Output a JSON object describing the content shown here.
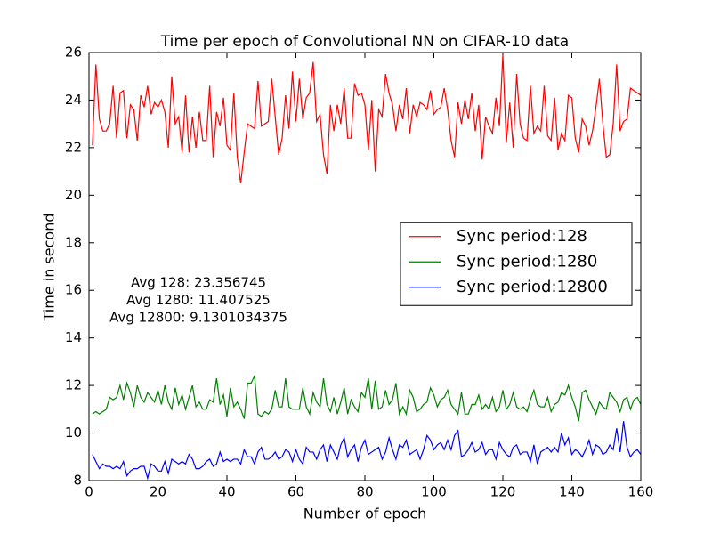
{
  "chart_data": {
    "type": "line",
    "title": "Time per epoch of Convolutional NN on CIFAR-10 data",
    "xlabel": "Number of epoch",
    "ylabel": "Time in second",
    "annotations": [
      "Avg 128: 23.356745",
      "Avg 1280: 11.407525",
      "Avg 12800: 9.1301034375"
    ],
    "legend": "center right",
    "xlim": [
      0,
      160
    ],
    "xticks": [
      0,
      20,
      40,
      60,
      80,
      100,
      120,
      140,
      160
    ],
    "ylim": [
      8,
      26
    ],
    "yticks": [
      8,
      10,
      12,
      14,
      16,
      18,
      20,
      22,
      24,
      26
    ],
    "x": [
      1,
      2,
      3,
      4,
      5,
      6,
      7,
      8,
      9,
      10,
      11,
      12,
      13,
      14,
      15,
      16,
      17,
      18,
      19,
      20,
      21,
      22,
      23,
      24,
      25,
      26,
      27,
      28,
      29,
      30,
      31,
      32,
      33,
      34,
      35,
      36,
      37,
      38,
      39,
      40,
      41,
      42,
      43,
      44,
      45,
      46,
      47,
      48,
      49,
      50,
      51,
      52,
      53,
      54,
      55,
      56,
      57,
      58,
      59,
      60,
      61,
      62,
      63,
      64,
      65,
      66,
      67,
      68,
      69,
      70,
      71,
      72,
      73,
      74,
      75,
      76,
      77,
      78,
      79,
      80,
      81,
      82,
      83,
      84,
      85,
      86,
      87,
      88,
      89,
      90,
      91,
      92,
      93,
      94,
      95,
      96,
      97,
      98,
      99,
      100,
      101,
      102,
      103,
      104,
      105,
      106,
      107,
      108,
      109,
      110,
      111,
      112,
      113,
      114,
      115,
      116,
      117,
      118,
      119,
      120,
      121,
      122,
      123,
      124,
      125,
      126,
      127,
      128,
      129,
      130,
      131,
      132,
      133,
      134,
      135,
      136,
      137,
      138,
      139,
      140,
      141,
      142,
      143,
      144,
      145,
      146,
      147,
      148,
      149,
      150,
      151,
      152,
      153,
      154,
      155,
      156,
      157,
      158,
      159,
      160
    ],
    "series": [
      {
        "name": "Sync period:128",
        "color": "#ff0000",
        "values": [
          22.1,
          25.5,
          23.2,
          22.7,
          22.7,
          23.0,
          24.6,
          22.4,
          24.3,
          24.4,
          22.4,
          23.8,
          23.6,
          22.3,
          24.2,
          23.7,
          24.6,
          23.4,
          23.9,
          23.7,
          24.0,
          23.5,
          22.0,
          25.0,
          23.0,
          23.3,
          21.8,
          24.2,
          21.8,
          23.3,
          22.0,
          23.5,
          22.3,
          22.3,
          24.6,
          21.6,
          23.5,
          22.9,
          24.1,
          22.1,
          21.9,
          24.3,
          21.6,
          20.5,
          21.8,
          23.0,
          22.9,
          22.8,
          24.8,
          22.9,
          23.0,
          23.1,
          24.9,
          23.3,
          21.7,
          22.4,
          24.2,
          22.8,
          25.2,
          23.1,
          24.9,
          23.2,
          24.1,
          24.3,
          25.6,
          23.1,
          23.4,
          21.7,
          20.9,
          23.8,
          22.7,
          23.8,
          23.0,
          24.5,
          22.4,
          22.4,
          24.7,
          24.2,
          24.3,
          23.8,
          21.9,
          24.0,
          21.0,
          23.6,
          23.3,
          25.1,
          24.3,
          23.8,
          22.7,
          23.8,
          23.2,
          24.5,
          22.6,
          23.8,
          23.3,
          23.9,
          23.8,
          23.6,
          24.4,
          23.4,
          23.6,
          23.7,
          24.5,
          23.6,
          22.3,
          21.6,
          23.9,
          23.0,
          24.0,
          23.2,
          24.3,
          22.7,
          23.8,
          21.5,
          23.3,
          22.9,
          22.6,
          24.1,
          22.9,
          25.9,
          22.2,
          23.9,
          22.0,
          25.1,
          23.0,
          22.4,
          22.3,
          24.6,
          22.6,
          22.9,
          22.7,
          24.6,
          22.5,
          22.3,
          24.1,
          21.9,
          22.6,
          22.3,
          24.2,
          24.1,
          22.4,
          21.8,
          23.2,
          22.9,
          22.1,
          22.7,
          23.7,
          24.9,
          23.0,
          21.6,
          21.7,
          23.0,
          25.5,
          22.7,
          23.1,
          23.2,
          24.5,
          24.4,
          24.3,
          24.2
        ]
      },
      {
        "name": "Sync period:1280",
        "color": "#008000",
        "values": [
          10.8,
          10.9,
          10.8,
          10.9,
          11.0,
          11.5,
          11.4,
          11.5,
          12.0,
          11.4,
          12.1,
          11.7,
          11.1,
          12.0,
          11.5,
          11.3,
          11.7,
          11.5,
          11.3,
          11.8,
          11.2,
          12.0,
          11.3,
          11.0,
          11.9,
          11.2,
          11.6,
          11.0,
          11.5,
          12.0,
          11.1,
          11.3,
          11.0,
          11.0,
          11.4,
          11.3,
          12.3,
          11.2,
          11.6,
          10.7,
          11.9,
          11.1,
          11.3,
          11.0,
          10.6,
          12.1,
          12.1,
          12.4,
          10.8,
          10.7,
          10.9,
          10.8,
          11.0,
          11.8,
          11.1,
          11.1,
          12.3,
          11.1,
          11.0,
          11.0,
          11.0,
          11.9,
          11.1,
          10.8,
          11.7,
          11.3,
          11.1,
          12.3,
          11.2,
          10.9,
          11.5,
          10.8,
          11.3,
          11.9,
          10.8,
          11.4,
          11.1,
          10.9,
          11.7,
          11.5,
          12.3,
          11.0,
          12.2,
          11.0,
          11.1,
          11.8,
          11.2,
          11.4,
          12.1,
          10.8,
          11.1,
          10.8,
          11.8,
          11.5,
          10.9,
          11.0,
          11.2,
          11.3,
          11.9,
          11.6,
          11.1,
          11.4,
          11.5,
          11.8,
          11.2,
          11.0,
          10.8,
          11.7,
          10.8,
          10.8,
          11.2,
          11.2,
          11.6,
          11.0,
          11.2,
          11.0,
          11.5,
          10.9,
          11.1,
          11.8,
          11.0,
          11.2,
          11.7,
          11.1,
          11.0,
          11.1,
          10.9,
          11.4,
          11.8,
          11.2,
          11.1,
          11.1,
          11.5,
          10.9,
          11.2,
          11.3,
          11.7,
          11.6,
          12.0,
          11.5,
          11.1,
          10.5,
          11.7,
          11.8,
          11.4,
          11.1,
          10.8,
          11.3,
          11.1,
          11.0,
          11.7,
          11.5,
          11.3,
          10.9,
          11.4,
          11.5,
          11.0,
          11.4,
          11.5,
          11.2
        ]
      },
      {
        "name": "Sync period:12800",
        "color": "#0000ff",
        "values": [
          9.1,
          8.8,
          8.5,
          8.7,
          8.6,
          8.6,
          8.5,
          8.6,
          8.5,
          8.8,
          8.2,
          8.4,
          8.5,
          8.5,
          8.6,
          8.6,
          8.1,
          8.7,
          8.6,
          8.4,
          8.4,
          8.8,
          8.3,
          8.9,
          8.8,
          8.7,
          8.8,
          8.7,
          9.1,
          8.9,
          8.5,
          8.5,
          8.6,
          8.8,
          8.9,
          8.6,
          8.7,
          9.2,
          8.8,
          8.9,
          8.8,
          8.9,
          8.9,
          8.7,
          9.3,
          9.0,
          9.0,
          8.7,
          9.2,
          9.4,
          8.9,
          8.9,
          9.0,
          9.2,
          8.9,
          9.0,
          9.3,
          9.2,
          8.8,
          9.3,
          8.9,
          8.7,
          9.4,
          9.2,
          9.2,
          8.9,
          9.3,
          9.5,
          8.8,
          9.5,
          9.2,
          8.9,
          9.5,
          9.8,
          9.0,
          9.3,
          9.5,
          8.8,
          9.4,
          9.7,
          9.1,
          9.2,
          9.3,
          9.4,
          8.9,
          9.2,
          9.8,
          9.3,
          8.9,
          9.5,
          9.4,
          9.7,
          9.1,
          9.2,
          9.3,
          8.9,
          9.3,
          9.9,
          9.7,
          9.3,
          9.5,
          9.6,
          9.3,
          9.7,
          9.3,
          9.9,
          10.1,
          9.0,
          9.1,
          9.3,
          9.6,
          9.2,
          9.3,
          9.6,
          9.1,
          9.3,
          9.3,
          8.9,
          9.6,
          9.3,
          9.1,
          9.0,
          9.4,
          9.5,
          9.1,
          9.2,
          9.2,
          8.8,
          9.5,
          8.7,
          9.2,
          9.3,
          9.4,
          9.2,
          9.4,
          9.2,
          10.0,
          9.5,
          9.8,
          9.1,
          9.3,
          9.2,
          9.0,
          9.3,
          9.7,
          9.1,
          9.5,
          9.4,
          9.1,
          9.2,
          9.5,
          9.3,
          10.2,
          9.2,
          10.5,
          9.4,
          9.0,
          9.2,
          9.3,
          9.1
        ]
      }
    ]
  }
}
